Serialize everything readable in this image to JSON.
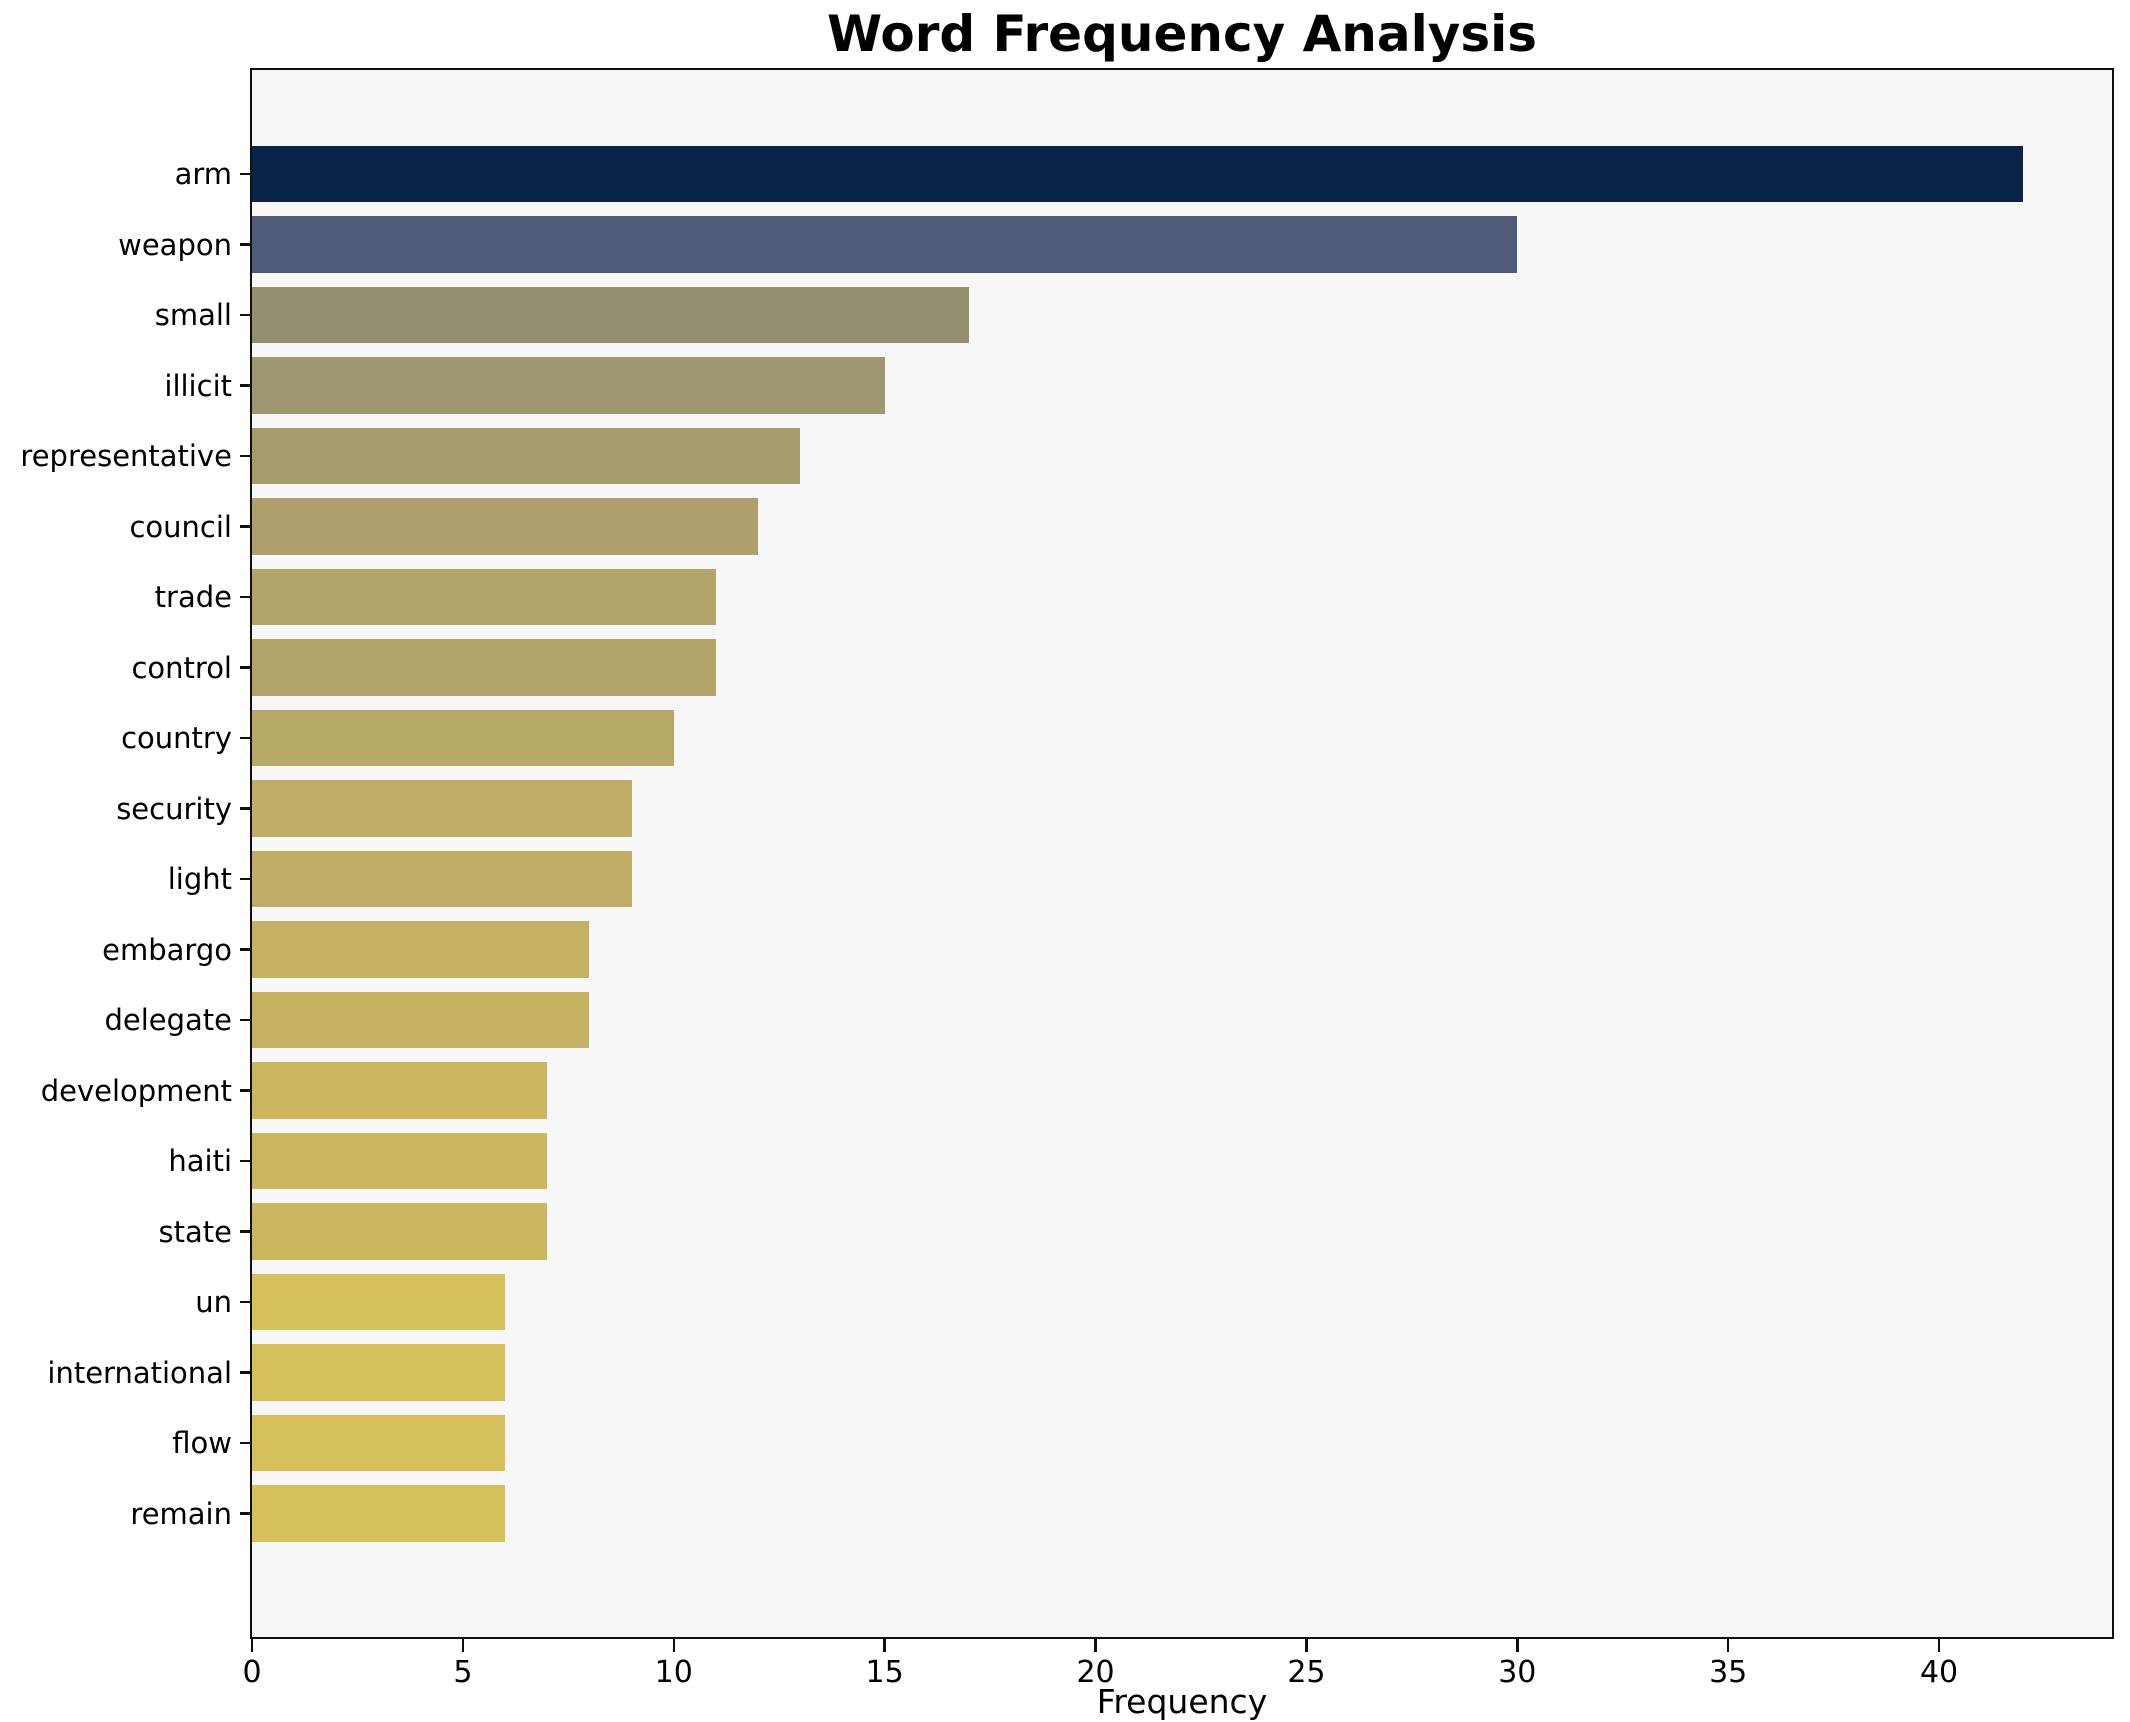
{
  "chart_data": {
    "type": "bar",
    "orientation": "horizontal",
    "title": "Word Frequency Analysis",
    "xlabel": "Frequency",
    "ylabel": "",
    "categories": [
      "arm",
      "weapon",
      "small",
      "illicit",
      "representative",
      "council",
      "trade",
      "control",
      "country",
      "security",
      "light",
      "embargo",
      "delegate",
      "development",
      "haiti",
      "state",
      "un",
      "international",
      "flow",
      "remain"
    ],
    "values": [
      42,
      30,
      17,
      15,
      13,
      12,
      11,
      11,
      10,
      9,
      9,
      8,
      8,
      7,
      7,
      7,
      6,
      6,
      6,
      6
    ],
    "bar_colors": [
      "#0a2349",
      "#4e5a77",
      "#929070",
      "#9f9772",
      "#a89c6e",
      "#ae9f6c",
      "#b2a46a",
      "#b2a46a",
      "#b9a967",
      "#bfad66",
      "#bfad66",
      "#c5b163",
      "#c5b163",
      "#ccb761",
      "#ccb761",
      "#ccb761",
      "#d6c05c",
      "#d6c05c",
      "#d6c05c",
      "#d6c05c"
    ],
    "xticks": [
      0,
      5,
      10,
      15,
      20,
      25,
      30,
      35,
      40
    ],
    "xlim": [
      0,
      44.1
    ],
    "grid": false,
    "legend_position": null,
    "colormap": "cividis-reversed",
    "plot_background": "#f7f7f7",
    "figure_background": "#ffffff",
    "spine_color": "#0f0f0f",
    "text_color": "#000000"
  }
}
